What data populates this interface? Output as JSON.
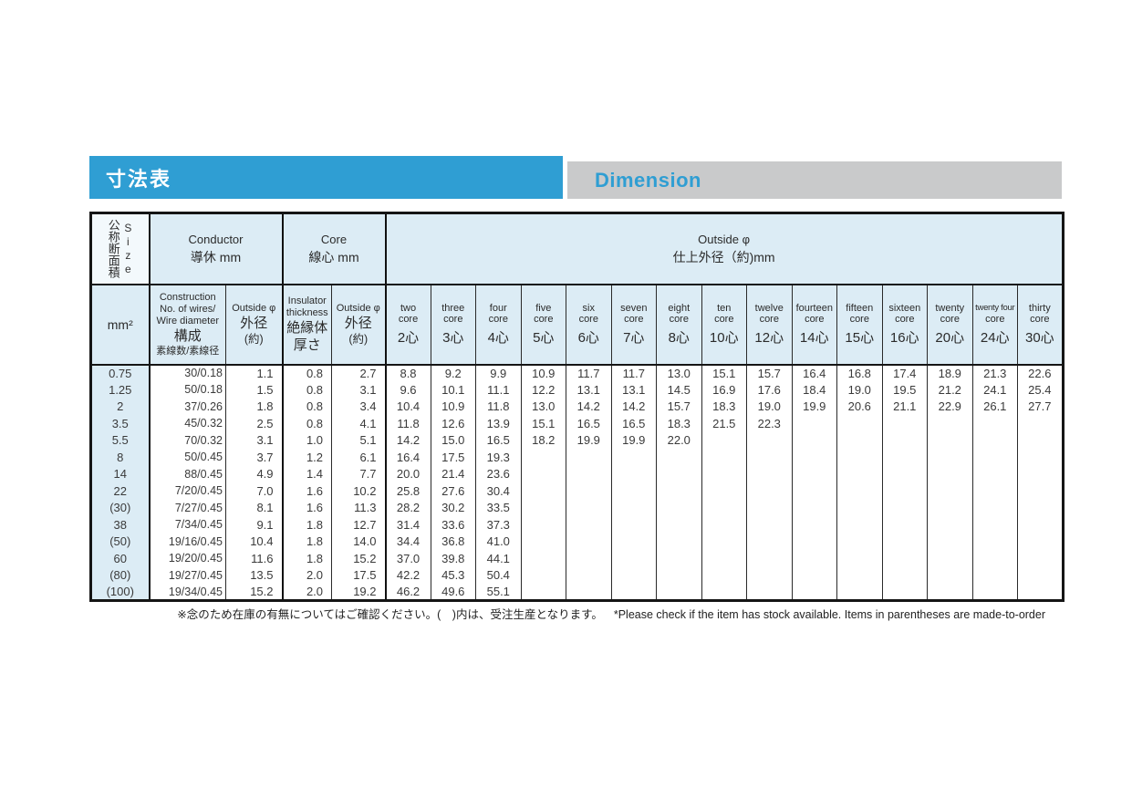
{
  "page": {
    "title_ja": "寸法表",
    "title_en": "Dimension",
    "accent_blue": "#2f9ed3",
    "bar_gray": "#c9cacb",
    "header_cell_bg": "#dcecf5"
  },
  "table": {
    "groups": {
      "size_ja": "公称断面積",
      "size_en": "Size",
      "conductor_en": "Conductor",
      "conductor_ja": "導休 mm",
      "core_en": "Core",
      "core_ja": "線心 mm",
      "outside_en": "Outside φ",
      "outside_ja": "仕上外径（約)mm"
    },
    "subheaders": {
      "size_unit": "mm²",
      "construction_en1": "Construction",
      "construction_en2": "No. of wires/",
      "construction_en3": "Wire diameter",
      "construction_ja1": "構成",
      "construction_ja2": "素線数/素線径",
      "outside1_en": "Outside φ",
      "outside1_ja1": "外径",
      "outside1_ja2": "(約)",
      "insulator_en1": "Insulator",
      "insulator_en2": "thickness",
      "insulator_ja1": "絶縁体",
      "insulator_ja2": "厚さ",
      "outside2_en": "Outside φ",
      "outside2_ja1": "外径",
      "outside2_ja2": "(約)"
    },
    "core_columns": [
      {
        "en1": "two",
        "en2": "core",
        "ja": "2心"
      },
      {
        "en1": "three",
        "en2": "core",
        "ja": "3心"
      },
      {
        "en1": "four",
        "en2": "core",
        "ja": "4心"
      },
      {
        "en1": "five",
        "en2": "core",
        "ja": "5心"
      },
      {
        "en1": "six",
        "en2": "core",
        "ja": "6心"
      },
      {
        "en1": "seven",
        "en2": "core",
        "ja": "7心"
      },
      {
        "en1": "eight",
        "en2": "core",
        "ja": "8心"
      },
      {
        "en1": "ten",
        "en2": "core",
        "ja": "10心"
      },
      {
        "en1": "twelve",
        "en2": "core",
        "ja": "12心"
      },
      {
        "en1": "fourteen",
        "en2": "core",
        "ja": "14心"
      },
      {
        "en1": "fifteen",
        "en2": "core",
        "ja": "15心"
      },
      {
        "en1": "sixteen",
        "en2": "core",
        "ja": "16心"
      },
      {
        "en1": "twenty",
        "en2": "core",
        "ja": "20心"
      },
      {
        "en1": "twenty four",
        "en2": "core",
        "ja": "24心"
      },
      {
        "en1": "thirty",
        "en2": "core",
        "ja": "30心"
      }
    ],
    "rows": [
      {
        "size": "0.75",
        "construction": "30/0.18",
        "conductor_od": "1.1",
        "insulator_thickness": "0.8",
        "core_od": "2.7",
        "cores": [
          "8.8",
          "9.2",
          "9.9",
          "10.9",
          "11.7",
          "11.7",
          "13.0",
          "15.1",
          "15.7",
          "16.4",
          "16.8",
          "17.4",
          "18.9",
          "21.3",
          "22.6"
        ]
      },
      {
        "size": "1.25",
        "construction": "50/0.18",
        "conductor_od": "1.5",
        "insulator_thickness": "0.8",
        "core_od": "3.1",
        "cores": [
          "9.6",
          "10.1",
          "11.1",
          "12.2",
          "13.1",
          "13.1",
          "14.5",
          "16.9",
          "17.6",
          "18.4",
          "19.0",
          "19.5",
          "21.2",
          "24.1",
          "25.4"
        ]
      },
      {
        "size": "2",
        "construction": "37/0.26",
        "conductor_od": "1.8",
        "insulator_thickness": "0.8",
        "core_od": "3.4",
        "cores": [
          "10.4",
          "10.9",
          "11.8",
          "13.0",
          "14.2",
          "14.2",
          "15.7",
          "18.3",
          "19.0",
          "19.9",
          "20.6",
          "21.1",
          "22.9",
          "26.1",
          "27.7"
        ]
      },
      {
        "size": "3.5",
        "construction": "45/0.32",
        "conductor_od": "2.5",
        "insulator_thickness": "0.8",
        "core_od": "4.1",
        "cores": [
          "11.8",
          "12.6",
          "13.9",
          "15.1",
          "16.5",
          "16.5",
          "18.3",
          "21.5",
          "22.3",
          "",
          "",
          "",
          "",
          "",
          ""
        ]
      },
      {
        "size": "5.5",
        "construction": "70/0.32",
        "conductor_od": "3.1",
        "insulator_thickness": "1.0",
        "core_od": "5.1",
        "cores": [
          "14.2",
          "15.0",
          "16.5",
          "18.2",
          "19.9",
          "19.9",
          "22.0",
          "",
          "",
          "",
          "",
          "",
          "",
          "",
          ""
        ]
      },
      {
        "size": "8",
        "construction": "50/0.45",
        "conductor_od": "3.7",
        "insulator_thickness": "1.2",
        "core_od": "6.1",
        "cores": [
          "16.4",
          "17.5",
          "19.3",
          "",
          "",
          "",
          "",
          "",
          "",
          "",
          "",
          "",
          "",
          "",
          ""
        ]
      },
      {
        "size": "14",
        "construction": "88/0.45",
        "conductor_od": "4.9",
        "insulator_thickness": "1.4",
        "core_od": "7.7",
        "cores": [
          "20.0",
          "21.4",
          "23.6",
          "",
          "",
          "",
          "",
          "",
          "",
          "",
          "",
          "",
          "",
          "",
          ""
        ]
      },
      {
        "size": "22",
        "construction": "7/20/0.45",
        "conductor_od": "7.0",
        "insulator_thickness": "1.6",
        "core_od": "10.2",
        "cores": [
          "25.8",
          "27.6",
          "30.4",
          "",
          "",
          "",
          "",
          "",
          "",
          "",
          "",
          "",
          "",
          "",
          ""
        ]
      },
      {
        "size": "(30)",
        "construction": "7/27/0.45",
        "conductor_od": "8.1",
        "insulator_thickness": "1.6",
        "core_od": "11.3",
        "cores": [
          "28.2",
          "30.2",
          "33.5",
          "",
          "",
          "",
          "",
          "",
          "",
          "",
          "",
          "",
          "",
          "",
          ""
        ]
      },
      {
        "size": "38",
        "construction": "7/34/0.45",
        "conductor_od": "9.1",
        "insulator_thickness": "1.8",
        "core_od": "12.7",
        "cores": [
          "31.4",
          "33.6",
          "37.3",
          "",
          "",
          "",
          "",
          "",
          "",
          "",
          "",
          "",
          "",
          "",
          ""
        ]
      },
      {
        "size": "(50)",
        "construction": "19/16/0.45",
        "conductor_od": "10.4",
        "insulator_thickness": "1.8",
        "core_od": "14.0",
        "cores": [
          "34.4",
          "36.8",
          "41.0",
          "",
          "",
          "",
          "",
          "",
          "",
          "",
          "",
          "",
          "",
          "",
          ""
        ]
      },
      {
        "size": "60",
        "construction": "19/20/0.45",
        "conductor_od": "11.6",
        "insulator_thickness": "1.8",
        "core_od": "15.2",
        "cores": [
          "37.0",
          "39.8",
          "44.1",
          "",
          "",
          "",
          "",
          "",
          "",
          "",
          "",
          "",
          "",
          "",
          ""
        ]
      },
      {
        "size": "(80)",
        "construction": "19/27/0.45",
        "conductor_od": "13.5",
        "insulator_thickness": "2.0",
        "core_od": "17.5",
        "cores": [
          "42.2",
          "45.3",
          "50.4",
          "",
          "",
          "",
          "",
          "",
          "",
          "",
          "",
          "",
          "",
          "",
          ""
        ]
      },
      {
        "size": "(100)",
        "construction": "19/34/0.45",
        "conductor_od": "15.2",
        "insulator_thickness": "2.0",
        "core_od": "19.2",
        "cores": [
          "46.2",
          "49.6",
          "55.1",
          "",
          "",
          "",
          "",
          "",
          "",
          "",
          "",
          "",
          "",
          "",
          ""
        ]
      }
    ]
  },
  "footer": {
    "note_ja": "※念のため在庫の有無についてはご確認ください。(　)内は、受注生産となります。",
    "note_en": "*Please check if the item has stock available. Items in parentheses are made-to-order"
  }
}
